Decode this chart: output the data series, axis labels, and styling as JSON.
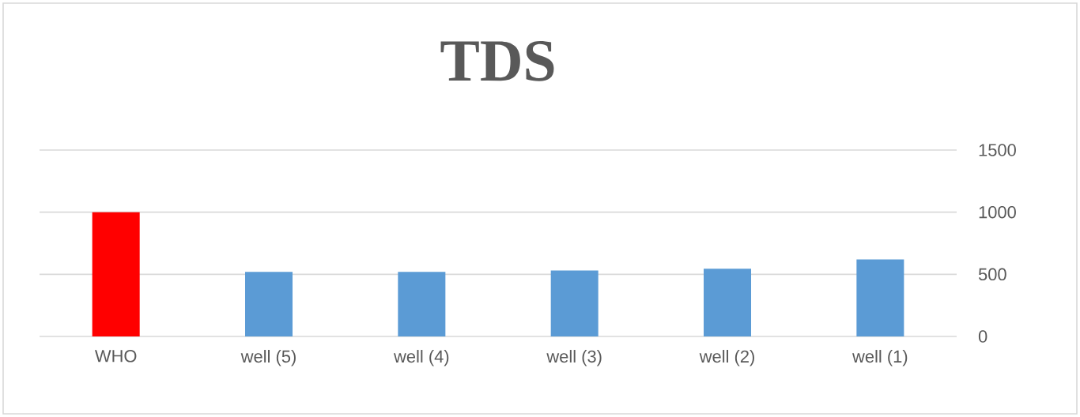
{
  "chart_data": {
    "type": "bar",
    "title": "TDS",
    "categories": [
      "WHO",
      "well (5)",
      "well (4)",
      "well (3)",
      "well (2)",
      "well (1)"
    ],
    "values": [
      1000,
      520,
      520,
      530,
      545,
      620
    ],
    "colors": [
      "#ff0000",
      "#5b9bd5",
      "#5b9bd5",
      "#5b9bd5",
      "#5b9bd5",
      "#5b9bd5"
    ],
    "ylim": [
      0,
      1500
    ],
    "yticks": [
      0,
      500,
      1000,
      1500
    ],
    "grid": "y"
  }
}
